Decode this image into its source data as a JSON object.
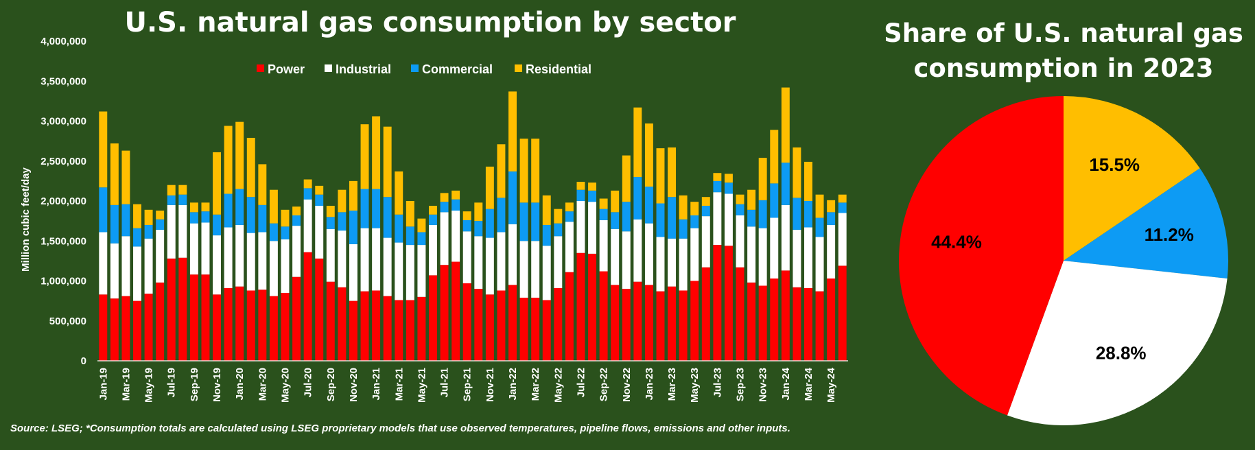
{
  "colors": {
    "background": "#2a511c",
    "power": "#ff0000",
    "industrial": "#ffffff",
    "commercial": "#0d9bf4",
    "residential": "#ffbe00"
  },
  "source_note": "Source: LSEG; *Consumption totals are calculated using LSEG proprietary models that use observed temperatures, pipeline flows, emissions and other inputs.",
  "chart_data": [
    {
      "type": "bar",
      "stacked": true,
      "title": "U.S. natural gas consumption by sector",
      "xlabel": "",
      "ylabel": "Million cubic feet/day",
      "ylim": [
        0,
        4000000
      ],
      "yticks": [
        "0",
        "500,000",
        "1,000,000",
        "1,500,000",
        "2,000,000",
        "2,500,000",
        "3,000,000",
        "3,500,000",
        "4,000,000"
      ],
      "grid": false,
      "legend_position": "top",
      "categories": [
        "Jan-19",
        "Feb-19",
        "Mar-19",
        "Apr-19",
        "May-19",
        "Jun-19",
        "Jul-19",
        "Aug-19",
        "Sep-19",
        "Oct-19",
        "Nov-19",
        "Dec-19",
        "Jan-20",
        "Feb-20",
        "Mar-20",
        "Apr-20",
        "May-20",
        "Jun-20",
        "Jul-20",
        "Aug-20",
        "Sep-20",
        "Oct-20",
        "Nov-20",
        "Dec-20",
        "Jan-21",
        "Feb-21",
        "Mar-21",
        "Apr-21",
        "May-21",
        "Jun-21",
        "Jul-21",
        "Aug-21",
        "Sep-21",
        "Oct-21",
        "Nov-21",
        "Dec-21",
        "Jan-22",
        "Feb-22",
        "Mar-22",
        "Apr-22",
        "May-22",
        "Jun-22",
        "Jul-22",
        "Aug-22",
        "Sep-22",
        "Oct-22",
        "Nov-22",
        "Dec-22",
        "Jan-23",
        "Feb-23",
        "Mar-23",
        "Apr-23",
        "May-23",
        "Jun-23",
        "Jul-23",
        "Aug-23",
        "Sep-23",
        "Oct-23",
        "Nov-23",
        "Dec-23",
        "Jan-24",
        "Feb-24",
        "Mar-24",
        "Apr-24",
        "May-24",
        "Jun-24"
      ],
      "tick_labels": [
        "Jan-19",
        "Mar-19",
        "May-19",
        "Jul-19",
        "Sep-19",
        "Nov-19",
        "Jan-20",
        "Mar-20",
        "May-20",
        "Jul-20",
        "Sep-20",
        "Nov-20",
        "Jan-21",
        "Mar-21",
        "May-21",
        "Jul-21",
        "Sep-21",
        "Nov-21",
        "Jan-22",
        "Mar-22",
        "May-22",
        "Jul-22",
        "Sep-22",
        "Nov-22",
        "Jan-23",
        "Mar-23",
        "May-23",
        "Jul-23",
        "Sep-23",
        "Nov-23",
        "Jan-24",
        "Mar-24",
        "May-24"
      ],
      "series": [
        {
          "name": "Power",
          "values": [
            830000,
            780000,
            810000,
            750000,
            840000,
            980000,
            1280000,
            1290000,
            1080000,
            1080000,
            830000,
            910000,
            930000,
            880000,
            890000,
            810000,
            850000,
            1050000,
            1360000,
            1280000,
            990000,
            920000,
            750000,
            870000,
            880000,
            810000,
            760000,
            760000,
            800000,
            1070000,
            1200000,
            1240000,
            970000,
            900000,
            830000,
            880000,
            950000,
            790000,
            790000,
            760000,
            910000,
            1110000,
            1350000,
            1340000,
            1120000,
            950000,
            900000,
            990000,
            950000,
            870000,
            930000,
            880000,
            1000000,
            1170000,
            1450000,
            1440000,
            1170000,
            980000,
            940000,
            1030000,
            1130000,
            920000,
            910000,
            870000,
            1030000,
            1190000
          ]
        },
        {
          "name": "Industrial",
          "values": [
            780000,
            690000,
            750000,
            680000,
            690000,
            660000,
            670000,
            660000,
            640000,
            650000,
            740000,
            760000,
            770000,
            720000,
            720000,
            690000,
            670000,
            640000,
            660000,
            660000,
            660000,
            710000,
            710000,
            790000,
            780000,
            730000,
            720000,
            690000,
            650000,
            630000,
            660000,
            640000,
            650000,
            660000,
            710000,
            730000,
            760000,
            710000,
            710000,
            680000,
            650000,
            630000,
            650000,
            650000,
            640000,
            700000,
            720000,
            780000,
            770000,
            680000,
            600000,
            650000,
            660000,
            640000,
            660000,
            650000,
            650000,
            700000,
            720000,
            760000,
            820000,
            720000,
            760000,
            680000,
            670000,
            660000
          ]
        },
        {
          "name": "Commercial",
          "values": [
            560000,
            480000,
            400000,
            230000,
            170000,
            130000,
            120000,
            130000,
            140000,
            140000,
            260000,
            420000,
            450000,
            450000,
            340000,
            220000,
            160000,
            130000,
            140000,
            140000,
            150000,
            230000,
            420000,
            490000,
            490000,
            510000,
            350000,
            230000,
            160000,
            130000,
            130000,
            140000,
            140000,
            190000,
            360000,
            430000,
            660000,
            480000,
            480000,
            260000,
            160000,
            130000,
            140000,
            140000,
            140000,
            210000,
            370000,
            530000,
            460000,
            420000,
            520000,
            240000,
            160000,
            130000,
            140000,
            140000,
            140000,
            210000,
            350000,
            430000,
            530000,
            400000,
            330000,
            240000,
            160000,
            130000
          ]
        },
        {
          "name": "Residential",
          "values": [
            950000,
            770000,
            670000,
            300000,
            190000,
            110000,
            130000,
            120000,
            120000,
            110000,
            780000,
            850000,
            840000,
            740000,
            510000,
            420000,
            210000,
            110000,
            110000,
            110000,
            140000,
            280000,
            370000,
            810000,
            910000,
            880000,
            540000,
            320000,
            170000,
            110000,
            110000,
            110000,
            110000,
            230000,
            530000,
            670000,
            1000000,
            800000,
            800000,
            370000,
            180000,
            110000,
            100000,
            100000,
            130000,
            270000,
            580000,
            870000,
            790000,
            690000,
            620000,
            300000,
            170000,
            110000,
            100000,
            110000,
            120000,
            250000,
            530000,
            670000,
            940000,
            630000,
            490000,
            290000,
            150000,
            100000
          ]
        }
      ]
    },
    {
      "type": "pie",
      "title_lines": [
        "Share of U.S. natural gas",
        "consumption in 2023"
      ],
      "slices": [
        {
          "name": "Residential",
          "value": 15.5,
          "label": "15.5%"
        },
        {
          "name": "Commercial",
          "value": 11.2,
          "label": "11.2%"
        },
        {
          "name": "Industrial",
          "value": 28.8,
          "label": "28.8%"
        },
        {
          "name": "Power",
          "value": 44.4,
          "label": "44.4%"
        }
      ]
    }
  ]
}
